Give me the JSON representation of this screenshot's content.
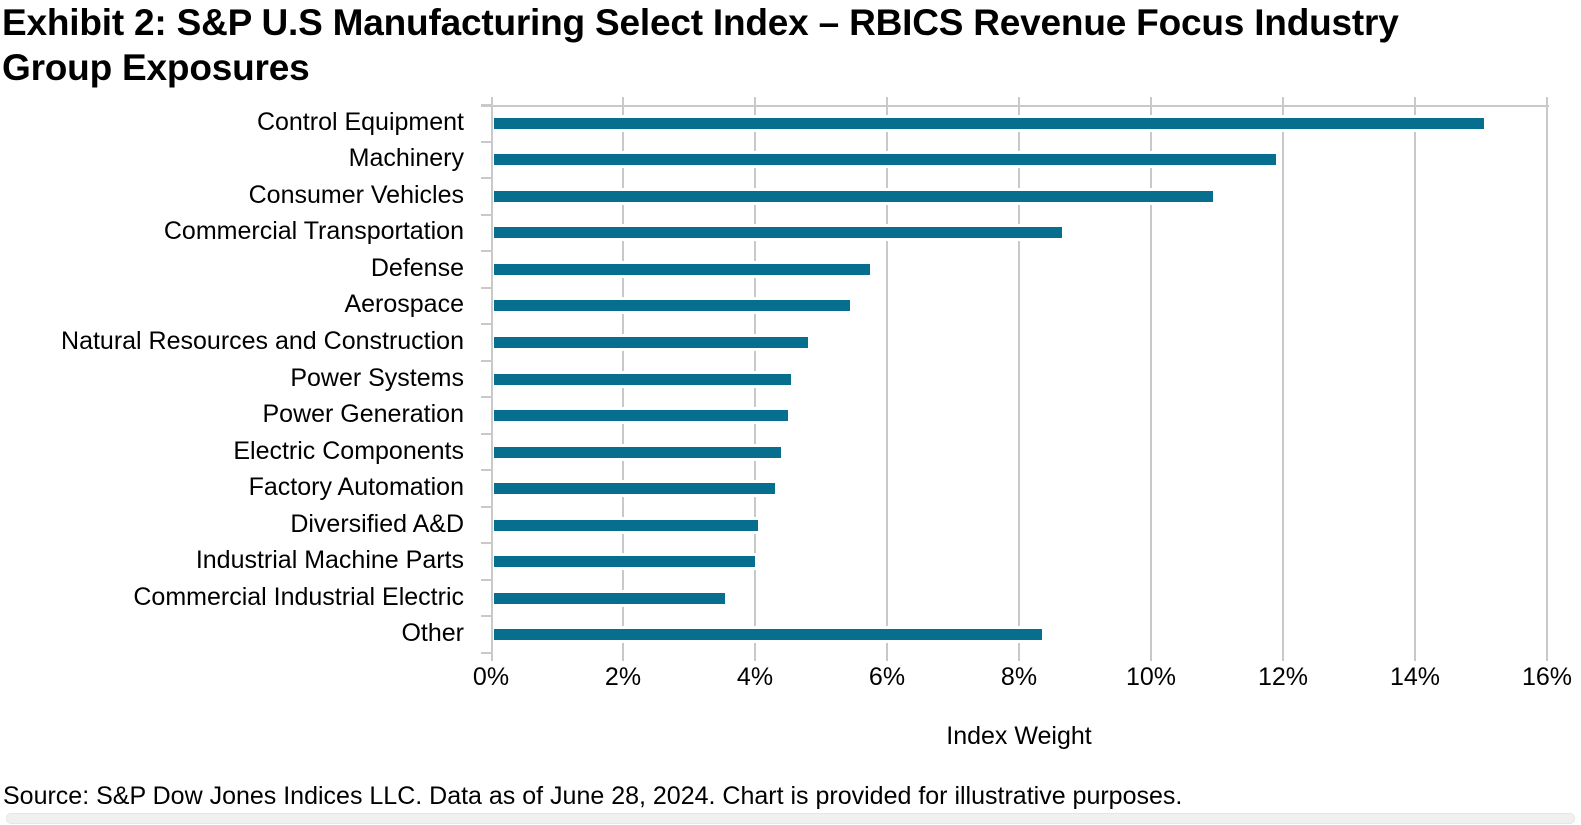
{
  "title": {
    "line1": "Exhibit 2: S&P U.S Manufacturing Select Index – RBICS Revenue Focus Industry",
    "line2": "Group Exposures"
  },
  "chart_data": {
    "type": "bar",
    "orientation": "horizontal",
    "title": "Exhibit 2: S&P U.S Manufacturing Select Index – RBICS Revenue Focus Industry Group Exposures",
    "categories": [
      "Control Equipment",
      "Machinery",
      "Consumer Vehicles",
      "Commercial Transportation",
      "Defense",
      "Aerospace",
      "Natural Resources and Construction",
      "Power Systems",
      "Power Generation",
      "Electric Components",
      "Factory Automation",
      "Diversified A&D",
      "Industrial Machine Parts",
      "Commercial Industrial Electric",
      "Other"
    ],
    "values": [
      15.0,
      11.85,
      10.9,
      8.6,
      5.7,
      5.4,
      4.75,
      4.5,
      4.45,
      4.35,
      4.25,
      4.0,
      3.95,
      3.5,
      8.3
    ],
    "unit": "%",
    "xlabel": "Index Weight",
    "ylabel": "",
    "xlim": [
      0,
      16
    ],
    "xtick_step": 2,
    "xticks": [
      "0%",
      "2%",
      "4%",
      "6%",
      "8%",
      "10%",
      "12%",
      "14%",
      "16%"
    ],
    "grid": true,
    "legend": false,
    "bar_color": "#066e8e",
    "gridline_color": "#c9c9c9"
  },
  "source_note": "Source: S&P Dow Jones Indices LLC. Data as of June 28, 2024. Chart is provided for illustrative purposes."
}
